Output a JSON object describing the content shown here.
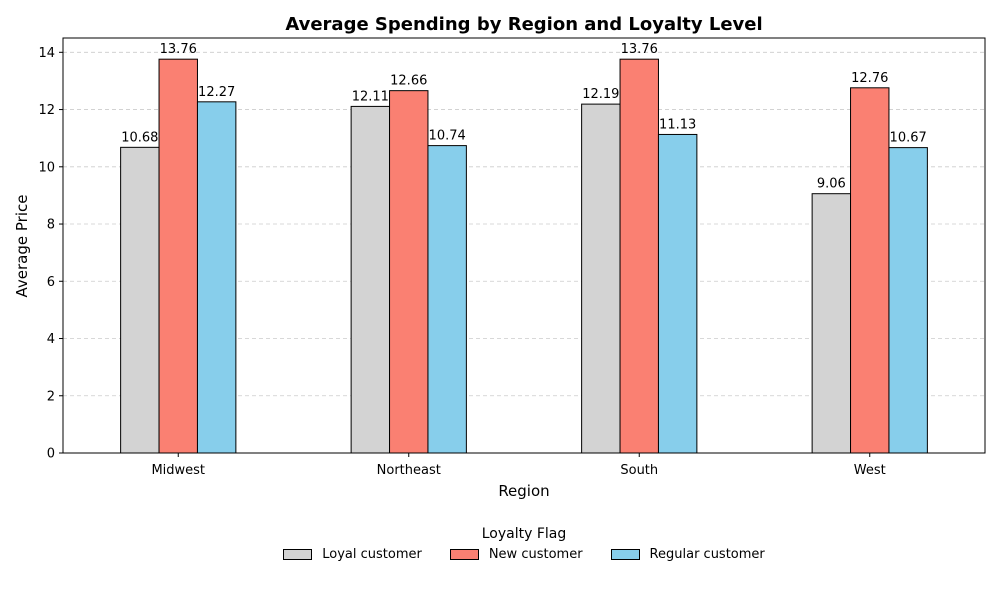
{
  "chart_data": {
    "type": "bar",
    "title": "Average Spending by Region and Loyalty Level",
    "xlabel": "Region",
    "ylabel": "Average Price",
    "categories": [
      "Midwest",
      "Northeast",
      "South",
      "West"
    ],
    "ylim": [
      0,
      14.5
    ],
    "yticks": [
      "0",
      "2",
      "4",
      "6",
      "8",
      "10",
      "12",
      "14"
    ],
    "grid": "y-dashed",
    "legend": {
      "title": "Loyalty Flag",
      "placement": "bottom-center"
    },
    "series": [
      {
        "name": "Loyal customer",
        "color": "#d3d3d3",
        "values": [
          10.68,
          12.11,
          12.19,
          9.06
        ]
      },
      {
        "name": "New customer",
        "color": "#fa8072",
        "values": [
          13.76,
          12.66,
          13.76,
          12.76
        ]
      },
      {
        "name": "Regular customer",
        "color": "#87ceeb",
        "values": [
          12.27,
          10.74,
          11.13,
          10.67
        ]
      }
    ]
  }
}
